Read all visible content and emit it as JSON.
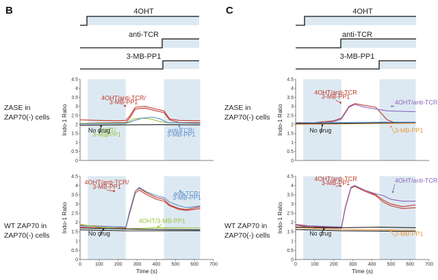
{
  "figure": {
    "panels": [
      "B",
      "C"
    ],
    "drugs": [
      "4OHT",
      "anti-TCR",
      "3-MB-PP1"
    ],
    "row_labels": [
      [
        "ZASE in",
        "ZAP70(-) cells"
      ],
      [
        "WT ZAP70 in",
        "ZAP70(-) cells"
      ]
    ],
    "colors": {
      "red": "#c0392b",
      "blue": "#5b8fc9",
      "green": "#9ac43c",
      "orange": "#e89a3c",
      "purple": "#8866bb",
      "black": "#222222",
      "shade": "#dde9f2"
    }
  },
  "chart_data": [
    {
      "id": "B-top",
      "type": "line",
      "panel": "B",
      "row": "ZASE in ZAP70(-) cells",
      "ylabel": "Indo-1 Ratio",
      "xlabel": "",
      "xlim": [
        0,
        700
      ],
      "ylim": [
        0,
        4.5
      ],
      "xticks": [
        0,
        100,
        200,
        300,
        400,
        500,
        600,
        700
      ],
      "yticks": [
        0,
        0.5,
        1,
        1.5,
        2,
        2.5,
        3,
        3.5,
        4,
        4.5
      ],
      "shaded": [
        [
          40,
          240
        ],
        [
          440,
          630
        ]
      ],
      "annotations": [
        {
          "text": "4OHT/anti-TCR/",
          "color": "red"
        },
        {
          "text": "3-MB-PP1",
          "color": "red"
        },
        {
          "text": "4OHT/",
          "color": "green"
        },
        {
          "text": "3-MB-PP1",
          "color": "green"
        },
        {
          "text": "anti-TCR/",
          "color": "blue"
        },
        {
          "text": "3-MB-PP1",
          "color": "blue"
        },
        {
          "text": "No drug",
          "color": "black"
        }
      ],
      "series": [
        {
          "name": "4OHT/anti-TCR/3-MB-PP1",
          "color": "red",
          "points": [
            [
              0,
              2.25
            ],
            [
              100,
              2.22
            ],
            [
              200,
              2.2
            ],
            [
              240,
              2.22
            ],
            [
              260,
              2.45
            ],
            [
              290,
              2.95
            ],
            [
              340,
              3.0
            ],
            [
              400,
              2.85
            ],
            [
              440,
              2.75
            ],
            [
              470,
              2.3
            ],
            [
              520,
              2.22
            ],
            [
              630,
              2.2
            ]
          ]
        },
        {
          "name": "4OHT/anti-TCR/3-MB-PP1 (replicate)",
          "color": "red",
          "points": [
            [
              0,
              2.05
            ],
            [
              100,
              2.08
            ],
            [
              200,
              2.1
            ],
            [
              240,
              2.1
            ],
            [
              260,
              2.35
            ],
            [
              290,
              2.85
            ],
            [
              340,
              2.9
            ],
            [
              400,
              2.75
            ],
            [
              440,
              2.65
            ],
            [
              470,
              2.25
            ],
            [
              520,
              2.1
            ],
            [
              630,
              2.1
            ]
          ]
        },
        {
          "name": "4OHT/3-MB-PP1",
          "color": "green",
          "points": [
            [
              0,
              2.05
            ],
            [
              240,
              2.08
            ],
            [
              280,
              2.3
            ],
            [
              320,
              2.35
            ],
            [
              370,
              2.3
            ],
            [
              420,
              2.15
            ],
            [
              470,
              2.08
            ],
            [
              630,
              2.05
            ]
          ]
        },
        {
          "name": "anti-TCR/3-MB-PP1",
          "color": "blue",
          "points": [
            [
              0,
              2.02
            ],
            [
              240,
              2.05
            ],
            [
              280,
              2.2
            ],
            [
              330,
              2.35
            ],
            [
              380,
              2.4
            ],
            [
              420,
              2.3
            ],
            [
              460,
              2.1
            ],
            [
              630,
              2.05
            ]
          ]
        },
        {
          "name": "No drug",
          "color": "black",
          "points": [
            [
              0,
              1.95
            ],
            [
              200,
              1.97
            ],
            [
              400,
              1.98
            ],
            [
              630,
              1.97
            ]
          ]
        }
      ]
    },
    {
      "id": "B-bottom",
      "type": "line",
      "panel": "B",
      "row": "WT ZAP70 in ZAP70(-) cells",
      "ylabel": "Indo-1 Ratio",
      "xlabel": "Time (s)",
      "xlim": [
        0,
        700
      ],
      "ylim": [
        0,
        4.5
      ],
      "xticks": [
        0,
        100,
        200,
        300,
        400,
        500,
        600,
        700
      ],
      "yticks": [
        0,
        0.5,
        1,
        1.5,
        2,
        2.5,
        3,
        3.5,
        4,
        4.5
      ],
      "shaded": [
        [
          40,
          240
        ],
        [
          440,
          630
        ]
      ],
      "annotations": [
        {
          "text": "4OHT/anti-TCR/",
          "color": "red"
        },
        {
          "text": "3-MB-PP1",
          "color": "red"
        },
        {
          "text": "anti-TCR/",
          "color": "blue"
        },
        {
          "text": "3-MB-PP1",
          "color": "blue"
        },
        {
          "text": "4OHT/3-MB-PP1",
          "color": "green"
        },
        {
          "text": "No drug",
          "color": "black"
        }
      ],
      "series": [
        {
          "name": "4OHT/anti-TCR/3-MB-PP1",
          "color": "red",
          "points": [
            [
              0,
              1.85
            ],
            [
              100,
              1.8
            ],
            [
              240,
              1.75
            ],
            [
              260,
              2.6
            ],
            [
              290,
              3.7
            ],
            [
              310,
              3.85
            ],
            [
              350,
              3.6
            ],
            [
              400,
              3.35
            ],
            [
              440,
              3.25
            ],
            [
              470,
              2.95
            ],
            [
              520,
              2.75
            ],
            [
              560,
              2.7
            ],
            [
              630,
              2.85
            ]
          ]
        },
        {
          "name": "4OHT/anti-TCR/3-MB-PP1 (replicate)",
          "color": "red",
          "points": [
            [
              0,
              1.75
            ],
            [
              100,
              1.72
            ],
            [
              240,
              1.7
            ],
            [
              260,
              2.5
            ],
            [
              290,
              3.6
            ],
            [
              310,
              3.75
            ],
            [
              350,
              3.5
            ],
            [
              400,
              3.25
            ],
            [
              440,
              3.15
            ],
            [
              470,
              2.9
            ],
            [
              520,
              2.7
            ],
            [
              560,
              2.65
            ],
            [
              630,
              2.75
            ]
          ]
        },
        {
          "name": "anti-TCR/3-MB-PP1",
          "color": "blue",
          "points": [
            [
              0,
              1.82
            ],
            [
              240,
              1.75
            ],
            [
              260,
              2.6
            ],
            [
              290,
              3.7
            ],
            [
              310,
              3.9
            ],
            [
              350,
              3.65
            ],
            [
              400,
              3.45
            ],
            [
              440,
              3.35
            ],
            [
              470,
              3.1
            ],
            [
              520,
              2.9
            ],
            [
              560,
              2.8
            ],
            [
              630,
              2.9
            ]
          ]
        },
        {
          "name": "4OHT/3-MB-PP1",
          "color": "green",
          "points": [
            [
              0,
              1.9
            ],
            [
              100,
              1.75
            ],
            [
              240,
              1.65
            ],
            [
              400,
              1.72
            ],
            [
              630,
              1.7
            ]
          ]
        },
        {
          "name": "No drug",
          "color": "black",
          "points": [
            [
              0,
              1.7
            ],
            [
              100,
              1.68
            ],
            [
              240,
              1.65
            ],
            [
              400,
              1.62
            ],
            [
              630,
              1.6
            ]
          ]
        },
        {
          "name": "No drug (replicate)",
          "color": "black",
          "points": [
            [
              0,
              1.6
            ],
            [
              240,
              1.55
            ],
            [
              630,
              1.55
            ]
          ]
        }
      ]
    },
    {
      "id": "C-top",
      "type": "line",
      "panel": "C",
      "row": "ZASE in ZAP70(-) cells",
      "ylabel": "Indo-1 Ratio",
      "xlabel": "",
      "xlim": [
        0,
        700
      ],
      "ylim": [
        0,
        4.5
      ],
      "xticks": [
        0,
        100,
        200,
        300,
        400,
        500,
        600,
        700
      ],
      "yticks": [
        0,
        0.5,
        1,
        1.5,
        2,
        2.5,
        3,
        3.5,
        4,
        4.5
      ],
      "shaded": [
        [
          40,
          240
        ],
        [
          440,
          630
        ]
      ],
      "annotations": [
        {
          "text": "4OHT/anti-TCR",
          "color": "red"
        },
        {
          "text": "3-MB-PP1",
          "color": "red"
        },
        {
          "text": "4OHT/anti-TCR",
          "color": "purple"
        },
        {
          "text": "No drug",
          "color": "black"
        },
        {
          "text": "3-MB-PP1",
          "color": "orange"
        }
      ],
      "series": [
        {
          "name": "4OHT/anti-TCR/3-MB-PP1",
          "color": "red",
          "points": [
            [
              0,
              2.05
            ],
            [
              100,
              2.1
            ],
            [
              200,
              2.2
            ],
            [
              240,
              2.35
            ],
            [
              280,
              3.0
            ],
            [
              310,
              3.15
            ],
            [
              360,
              3.05
            ],
            [
              420,
              2.95
            ],
            [
              450,
              2.6
            ],
            [
              480,
              2.25
            ],
            [
              520,
              2.1
            ],
            [
              630,
              2.1
            ]
          ]
        },
        {
          "name": "4OHT/anti-TCR",
          "color": "purple",
          "points": [
            [
              0,
              2.0
            ],
            [
              100,
              2.05
            ],
            [
              200,
              2.15
            ],
            [
              240,
              2.3
            ],
            [
              280,
              2.95
            ],
            [
              310,
              3.1
            ],
            [
              360,
              2.95
            ],
            [
              420,
              2.85
            ],
            [
              480,
              2.75
            ],
            [
              560,
              2.72
            ],
            [
              630,
              2.7
            ]
          ]
        },
        {
          "name": "3-MB-PP1",
          "color": "orange",
          "points": [
            [
              0,
              2.0
            ],
            [
              200,
              2.02
            ],
            [
              440,
              2.05
            ],
            [
              630,
              2.05
            ]
          ]
        },
        {
          "name": "No drug",
          "color": "black",
          "points": [
            [
              0,
              2.05
            ],
            [
              200,
              2.05
            ],
            [
              440,
              2.08
            ],
            [
              630,
              2.1
            ]
          ]
        },
        {
          "name": "No drug (blue)",
          "color": "blue",
          "points": [
            [
              0,
              2.1
            ],
            [
              200,
              2.1
            ],
            [
              440,
              2.12
            ],
            [
              630,
              2.12
            ]
          ]
        }
      ]
    },
    {
      "id": "C-bottom",
      "type": "line",
      "panel": "C",
      "row": "WT ZAP70 in ZAP70(-) cells",
      "ylabel": "Indo-1 Ratio",
      "xlabel": "Time (s)",
      "xlim": [
        0,
        700
      ],
      "ylim": [
        0,
        4.5
      ],
      "xticks": [
        0,
        100,
        200,
        300,
        400,
        500,
        600,
        700
      ],
      "yticks": [
        0,
        0.5,
        1,
        1.5,
        2,
        2.5,
        3,
        3.5,
        4,
        4.5
      ],
      "shaded": [
        [
          40,
          240
        ],
        [
          440,
          630
        ]
      ],
      "annotations": [
        {
          "text": "4OHT/anti-TCR",
          "color": "red"
        },
        {
          "text": "3-MB-PP1",
          "color": "red"
        },
        {
          "text": "4OHT/anti-TCR",
          "color": "purple"
        },
        {
          "text": "No drug",
          "color": "black"
        },
        {
          "text": "3-MB-PP1",
          "color": "orange"
        }
      ],
      "series": [
        {
          "name": "4OHT/anti-TCR/3-MB-PP1",
          "color": "red",
          "points": [
            [
              0,
              1.9
            ],
            [
              100,
              1.78
            ],
            [
              240,
              1.75
            ],
            [
              260,
              2.8
            ],
            [
              290,
              3.9
            ],
            [
              310,
              4.0
            ],
            [
              360,
              3.75
            ],
            [
              420,
              3.5
            ],
            [
              460,
              3.2
            ],
            [
              500,
              3.0
            ],
            [
              560,
              2.85
            ],
            [
              630,
              2.95
            ]
          ]
        },
        {
          "name": "4OHT/anti-TCR/3-MB-PP1 (replicate)",
          "color": "red",
          "points": [
            [
              0,
              1.85
            ],
            [
              100,
              1.72
            ],
            [
              240,
              1.7
            ],
            [
              260,
              2.75
            ],
            [
              290,
              3.85
            ],
            [
              310,
              3.95
            ],
            [
              360,
              3.7
            ],
            [
              420,
              3.45
            ],
            [
              460,
              3.1
            ],
            [
              500,
              2.9
            ],
            [
              560,
              2.75
            ],
            [
              630,
              2.8
            ]
          ]
        },
        {
          "name": "4OHT/anti-TCR",
          "color": "purple",
          "points": [
            [
              0,
              1.85
            ],
            [
              240,
              1.75
            ],
            [
              260,
              2.8
            ],
            [
              290,
              3.9
            ],
            [
              310,
              4.0
            ],
            [
              360,
              3.75
            ],
            [
              420,
              3.55
            ],
            [
              460,
              3.45
            ],
            [
              500,
              3.25
            ],
            [
              560,
              3.15
            ],
            [
              630,
              3.15
            ]
          ]
        },
        {
          "name": "3-MB-PP1",
          "color": "orange",
          "points": [
            [
              0,
              1.72
            ],
            [
              240,
              1.62
            ],
            [
              440,
              1.6
            ],
            [
              630,
              1.58
            ]
          ]
        },
        {
          "name": "No drug",
          "color": "black",
          "points": [
            [
              0,
              1.75
            ],
            [
              240,
              1.72
            ],
            [
              440,
              1.75
            ],
            [
              630,
              1.72
            ]
          ]
        },
        {
          "name": "No drug (replicate)",
          "color": "black",
          "points": [
            [
              0,
              1.62
            ],
            [
              240,
              1.55
            ],
            [
              630,
              1.52
            ]
          ]
        }
      ]
    }
  ]
}
